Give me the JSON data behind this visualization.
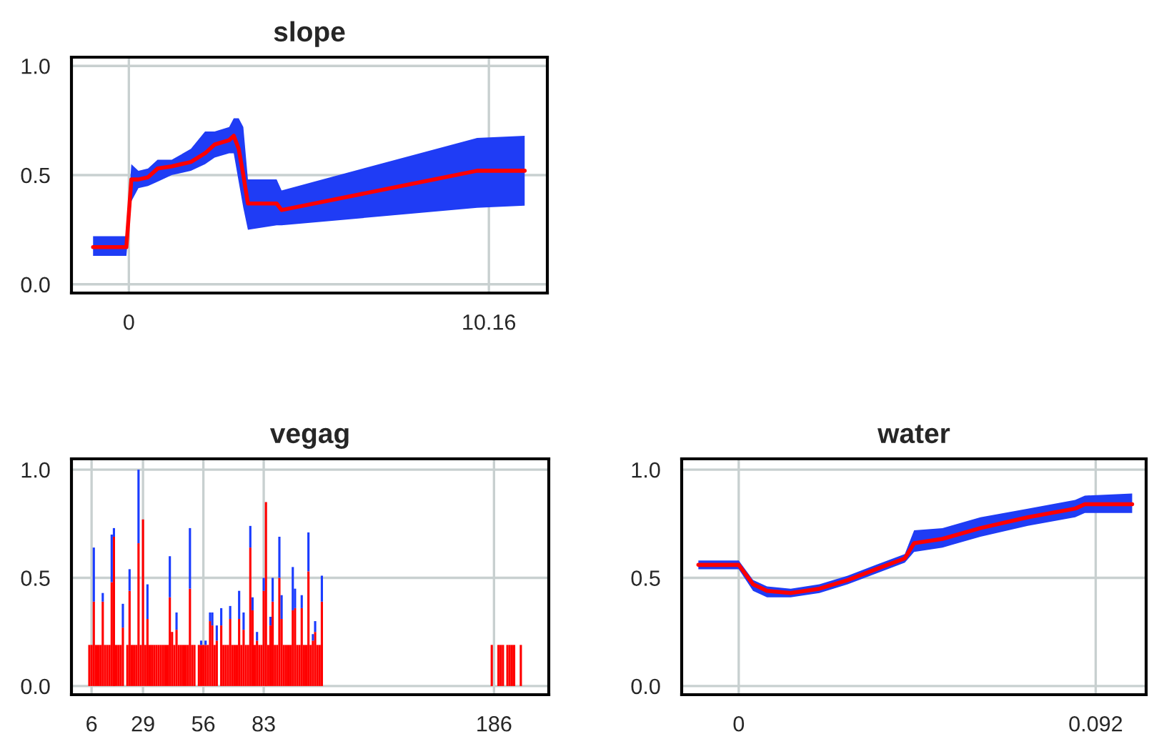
{
  "chart_data": [
    {
      "type": "line",
      "title": "slope",
      "xlim": [
        -1.62,
        11.81
      ],
      "ylim": [
        -0.04,
        1.04
      ],
      "xticks": [
        0,
        10.16
      ],
      "yticks": [
        {
          "value": 0,
          "label": "0.0"
        },
        {
          "value": 0.5,
          "label": "0.5"
        },
        {
          "value": 1,
          "label": "1.0"
        }
      ],
      "grid": true,
      "marker": "none",
      "line_style": "solid",
      "x": [
        -1.01,
        -0.07,
        0.07,
        0.27,
        0.54,
        0.81,
        1.21,
        1.75,
        2.15,
        2.42,
        2.83,
        2.96,
        3.1,
        3.23,
        3.36,
        4.17,
        4.31,
        9.83,
        11.17
      ],
      "series": [
        {
          "color": "#ff0000",
          "values": [
            0.17,
            0.17,
            0.48,
            0.48,
            0.49,
            0.53,
            0.54,
            0.56,
            0.6,
            0.64,
            0.66,
            0.68,
            0.62,
            0.5,
            0.37,
            0.37,
            0.34,
            0.52,
            0.52
          ],
          "lower": [
            0.13,
            0.13,
            0.38,
            0.44,
            0.45,
            0.47,
            0.5,
            0.52,
            0.55,
            0.58,
            0.6,
            0.6,
            0.47,
            0.35,
            0.25,
            0.27,
            0.27,
            0.35,
            0.36
          ],
          "upper": [
            0.22,
            0.22,
            0.55,
            0.52,
            0.53,
            0.57,
            0.57,
            0.62,
            0.7,
            0.7,
            0.72,
            0.76,
            0.76,
            0.72,
            0.48,
            0.48,
            0.43,
            0.67,
            0.68
          ]
        }
      ]
    },
    {
      "type": "bar",
      "title": "vegag",
      "stacked": true,
      "xlim": [
        -3,
        210.5
      ],
      "ylim": [
        -0.04,
        1.05
      ],
      "xticks": [
        6,
        29,
        56,
        83,
        186
      ],
      "yticks": [
        {
          "value": 0,
          "label": "0.0"
        },
        {
          "value": 0.5,
          "label": "0.5"
        },
        {
          "value": 1,
          "label": "1.0"
        }
      ],
      "grid": true,
      "x": [
        5,
        6,
        7,
        8,
        9,
        10,
        11,
        12,
        13,
        14,
        15,
        16,
        17,
        18,
        19,
        20,
        22,
        23,
        24,
        25,
        26,
        27,
        28,
        29,
        30,
        31,
        32,
        33,
        34,
        35,
        36,
        37,
        38,
        39,
        40,
        41,
        42,
        43,
        44,
        45,
        46,
        47,
        48,
        49,
        50,
        51,
        52,
        54,
        55,
        56,
        57,
        58,
        59,
        60,
        61,
        62,
        64,
        65,
        66,
        67,
        68,
        69,
        70,
        71,
        72,
        73,
        74,
        75,
        76,
        77,
        78,
        79,
        80,
        81,
        82,
        83,
        84,
        85,
        86,
        87,
        88,
        89,
        90,
        91,
        92,
        93,
        94,
        95,
        96,
        97,
        98,
        99,
        100,
        101,
        102,
        103,
        104,
        105,
        106,
        107,
        108,
        109,
        185,
        188,
        189,
        190,
        192,
        193,
        194,
        195,
        198
      ],
      "series": [
        {
          "color": "#ff0000",
          "values": [
            0.19,
            0.19,
            0.39,
            0.19,
            0.19,
            0.19,
            0.39,
            0.19,
            0.19,
            0.19,
            0.48,
            0.69,
            0.19,
            0.19,
            0.19,
            0.27,
            0.19,
            0.44,
            0.19,
            0.19,
            0.19,
            0.66,
            0.19,
            0.77,
            0.19,
            0.31,
            0.19,
            0.19,
            0.19,
            0.19,
            0.19,
            0.19,
            0.19,
            0.19,
            0.19,
            0.41,
            0.25,
            0.19,
            0.26,
            0.19,
            0.19,
            0.19,
            0.19,
            0.19,
            0.45,
            0.19,
            0.19,
            0.19,
            0.19,
            0.19,
            0.19,
            0.19,
            0.3,
            0.28,
            0.19,
            0.21,
            0.28,
            0.19,
            0.19,
            0.19,
            0.31,
            0.19,
            0.19,
            0.19,
            0.31,
            0.19,
            0.26,
            0.19,
            0.19,
            0.64,
            0.35,
            0.19,
            0.21,
            0.19,
            0.19,
            0.44,
            0.85,
            0.19,
            0.28,
            0.39,
            0.19,
            0.19,
            0.5,
            0.31,
            0.19,
            0.19,
            0.19,
            0.19,
            0.35,
            0.36,
            0.19,
            0.19,
            0.36,
            0.19,
            0.19,
            0.53,
            0.19,
            0.21,
            0.25,
            0.19,
            0.19,
            0.39,
            0.19,
            0.19,
            0.19,
            0.19,
            0.19,
            0.19,
            0.19,
            0.19,
            0.19
          ]
        },
        {
          "color": "#1a3cff",
          "values": [
            null,
            null,
            0.25,
            null,
            null,
            null,
            0.04,
            null,
            null,
            null,
            0.22,
            0.04,
            null,
            null,
            null,
            0.11,
            null,
            0.1,
            null,
            null,
            null,
            0.34,
            null,
            null,
            null,
            0.16,
            null,
            null,
            null,
            null,
            null,
            null,
            null,
            null,
            null,
            0.19,
            null,
            null,
            0.08,
            null,
            null,
            null,
            null,
            null,
            0.28,
            null,
            null,
            null,
            0.02,
            null,
            0.02,
            null,
            0.04,
            0.06,
            null,
            0.07,
            0.08,
            null,
            null,
            null,
            0.06,
            null,
            null,
            null,
            0.13,
            null,
            0.08,
            null,
            null,
            0.1,
            0.06,
            null,
            0.04,
            null,
            null,
            0.06,
            null,
            null,
            0.04,
            0.11,
            null,
            null,
            0.19,
            0.11,
            null,
            null,
            null,
            null,
            0.2,
            0.09,
            null,
            null,
            0.06,
            null,
            null,
            0.18,
            null,
            0.03,
            0.05,
            null,
            null,
            0.12,
            null,
            null,
            null,
            null,
            null,
            null,
            null,
            null,
            null
          ]
        }
      ]
    },
    {
      "type": "line",
      "title": "water",
      "xlim": [
        -0.0147,
        0.105
      ],
      "ylim": [
        -0.04,
        1.05
      ],
      "xticks": [
        0,
        0.092
      ],
      "yticks": [
        {
          "value": 0,
          "label": "0.0"
        },
        {
          "value": 0.5,
          "label": "0.5"
        },
        {
          "value": 1,
          "label": "1.0"
        }
      ],
      "grid": true,
      "marker": "none",
      "line_style": "solid",
      "x": [
        -0.0104,
        0,
        0.0037,
        0.0073,
        0.0134,
        0.0208,
        0.0281,
        0.0354,
        0.0428,
        0.0452,
        0.0525,
        0.0623,
        0.0745,
        0.0867,
        0.0892,
        0.1014
      ],
      "series": [
        {
          "color": "#ff0000",
          "values": [
            0.56,
            0.56,
            0.47,
            0.44,
            0.43,
            0.45,
            0.49,
            0.54,
            0.59,
            0.66,
            0.68,
            0.73,
            0.78,
            0.82,
            0.84,
            0.84
          ],
          "lower": [
            0.54,
            0.54,
            0.44,
            0.41,
            0.41,
            0.43,
            0.47,
            0.52,
            0.57,
            0.62,
            0.64,
            0.69,
            0.74,
            0.78,
            0.8,
            0.8
          ],
          "upper": [
            0.58,
            0.58,
            0.49,
            0.46,
            0.45,
            0.47,
            0.51,
            0.56,
            0.61,
            0.72,
            0.73,
            0.78,
            0.82,
            0.86,
            0.88,
            0.89
          ]
        }
      ]
    }
  ]
}
